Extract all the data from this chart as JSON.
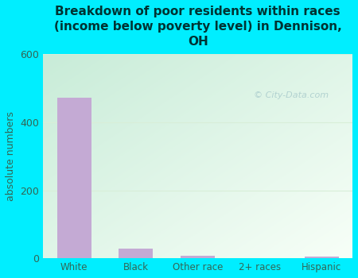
{
  "title": "Breakdown of poor residents within races\n(income below poverty level) in Dennison,\nOH",
  "categories": [
    "White",
    "Black",
    "Other race",
    "2+ races",
    "Hispanic"
  ],
  "values": [
    473,
    28,
    7,
    0,
    6
  ],
  "bar_color": "#c4aad4",
  "ylabel": "absolute numbers",
  "ylim": [
    0,
    600
  ],
  "yticks": [
    0,
    200,
    400,
    600
  ],
  "bg_outer": "#00eeff",
  "bg_plot_topleft": "#c8ecd8",
  "bg_plot_bottomright": "#f4fff8",
  "title_color": "#003333",
  "axis_color": "#336655",
  "tick_color": "#336655",
  "grid_color": "#d8eed8",
  "watermark": "City-Data.com",
  "watermark_color": "#aacccc",
  "figsize": [
    4.5,
    3.5
  ],
  "dpi": 100
}
